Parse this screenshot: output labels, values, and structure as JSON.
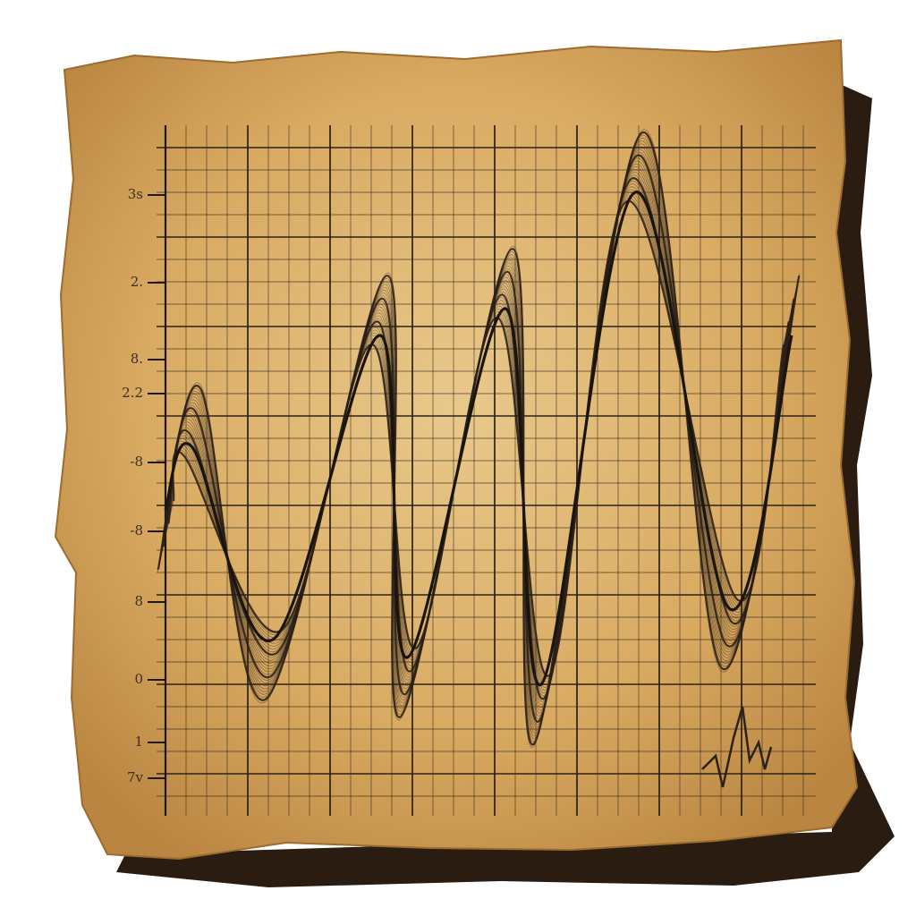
{
  "paper": {
    "axis_labels": [
      "3s",
      "2.",
      "8.",
      "2.2",
      "-8",
      "-8",
      "8",
      "0",
      "1",
      "7v"
    ]
  }
}
